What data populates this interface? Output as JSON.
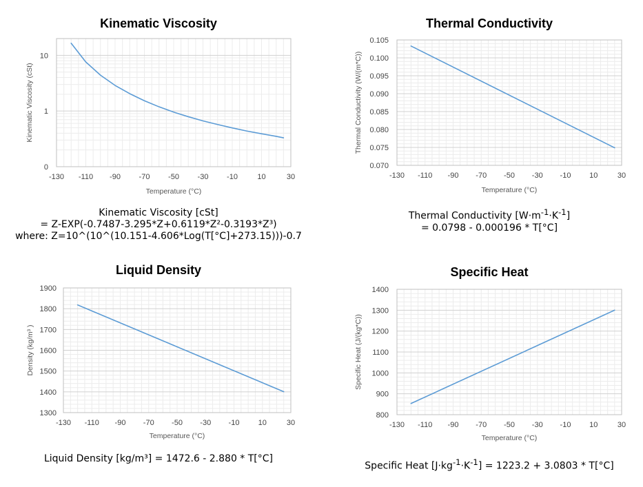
{
  "chart_data": [
    {
      "id": "visc",
      "type": "line",
      "title": "Kinematic Viscosity",
      "xlabel": "Temperature (°C)",
      "ylabel": "Kinematic Viscosity (cSt)",
      "xlim": [
        -130,
        30
      ],
      "ylim": [
        0.1,
        20
      ],
      "yscale": "log",
      "x_ticks": [
        "-130",
        "-110",
        "-90",
        "-70",
        "-50",
        "-30",
        "-10",
        "10",
        "30"
      ],
      "y_ticks": [
        {
          "value": 0.1,
          "label": "0"
        },
        {
          "value": 1,
          "label": "1"
        },
        {
          "value": 10,
          "label": "10"
        }
      ],
      "grid": true,
      "series": [
        {
          "color": "#5b9bd5",
          "x": [
            -120,
            -110,
            -100,
            -90,
            -80,
            -70,
            -60,
            -50,
            -40,
            -30,
            -20,
            -10,
            0,
            10,
            20,
            25
          ],
          "y": [
            16.5,
            7.6,
            4.4,
            2.88,
            2.05,
            1.53,
            1.19,
            0.955,
            0.79,
            0.665,
            0.573,
            0.497,
            0.437,
            0.39,
            0.351,
            0.33
          ]
        }
      ],
      "equation": [
        "Kinematic Viscosity [cSt]",
        "= Z-EXP(-0.7487-3.295*Z+0.6119*Z²-0.3193*Z³)",
        "where: Z=10^(10^(10.151-4.606*Log(T[°C]+273.15)))-0.7"
      ]
    },
    {
      "id": "cond",
      "type": "line",
      "title": "Thermal Conductivity",
      "xlabel": "Temperature (°C)",
      "ylabel": "Thermal Conductivity (W/(m*C))",
      "xlim": [
        -130,
        30
      ],
      "ylim": [
        0.07,
        0.105
      ],
      "x_ticks": [
        "-130",
        "-110",
        "-90",
        "-70",
        "-50",
        "-30",
        "-10",
        "10",
        "30"
      ],
      "y_ticks": [
        {
          "value": 0.07,
          "label": "0.070"
        },
        {
          "value": 0.075,
          "label": "0.075"
        },
        {
          "value": 0.08,
          "label": "0.080"
        },
        {
          "value": 0.085,
          "label": "0.085"
        },
        {
          "value": 0.09,
          "label": "0.090"
        },
        {
          "value": 0.095,
          "label": "0.095"
        },
        {
          "value": 0.1,
          "label": "0.100"
        },
        {
          "value": 0.105,
          "label": "0.105"
        }
      ],
      "grid": true,
      "series": [
        {
          "color": "#5b9bd5",
          "x": [
            -120,
            25
          ],
          "y": [
            0.1033,
            0.0749
          ]
        }
      ],
      "equation_line1": {
        "a": "Thermal Conductivity [W·m",
        "s1": "-1",
        "b": "·K",
        "s2": "-1",
        "c": "]"
      },
      "equation": [
        "= 0.0798 - 0.000196 * T[°C]"
      ]
    },
    {
      "id": "dens",
      "type": "line",
      "title": "Liquid Density",
      "xlabel": "Temperature (°C)",
      "ylabel": "Density (kg/m³ )",
      "xlim": [
        -130,
        30
      ],
      "ylim": [
        1300,
        1900
      ],
      "x_ticks": [
        "-130",
        "-110",
        "-90",
        "-70",
        "-50",
        "-30",
        "-10",
        "10",
        "30"
      ],
      "y_ticks": [
        {
          "value": 1300,
          "label": "1300"
        },
        {
          "value": 1400,
          "label": "1400"
        },
        {
          "value": 1500,
          "label": "1500"
        },
        {
          "value": 1600,
          "label": "1600"
        },
        {
          "value": 1700,
          "label": "1700"
        },
        {
          "value": 1800,
          "label": "1800"
        },
        {
          "value": 1900,
          "label": "1900"
        }
      ],
      "grid": true,
      "series": [
        {
          "color": "#5b9bd5",
          "x": [
            -120,
            25
          ],
          "y": [
            1818.2,
            1400.6
          ]
        }
      ],
      "equation": [
        "Liquid Density [kg/m³] = 1472.6 - 2.880 * T[°C]"
      ]
    },
    {
      "id": "heat",
      "type": "line",
      "title": "Specific Heat",
      "xlabel": "Temperature (°C)",
      "ylabel": "Specific Heat (J/(kg*C))",
      "xlim": [
        -130,
        30
      ],
      "ylim": [
        800,
        1400
      ],
      "x_ticks": [
        "-130",
        "-110",
        "-90",
        "-70",
        "-50",
        "-30",
        "-10",
        "10",
        "30"
      ],
      "y_ticks": [
        {
          "value": 800,
          "label": "800"
        },
        {
          "value": 900,
          "label": "900"
        },
        {
          "value": 1000,
          "label": "1000"
        },
        {
          "value": 1100,
          "label": "1100"
        },
        {
          "value": 1200,
          "label": "1200"
        },
        {
          "value": 1300,
          "label": "1300"
        },
        {
          "value": 1400,
          "label": "1400"
        }
      ],
      "grid": true,
      "series": [
        {
          "color": "#5b9bd5",
          "x": [
            -120,
            25
          ],
          "y": [
            853.6,
            1300.2
          ]
        }
      ],
      "equation_line1": {
        "a": "Specific Heat [J·kg",
        "s1": "-1",
        "b": "·K",
        "s2": "-1",
        "c": "] = 1223.2 + 3.0803 * T[°C]"
      }
    }
  ]
}
